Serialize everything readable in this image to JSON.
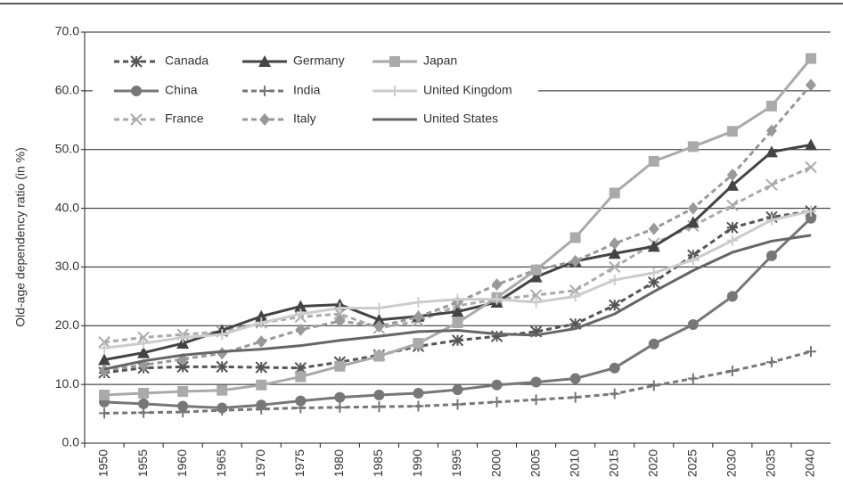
{
  "chart_data": {
    "type": "line",
    "y_label": "Old-age dependency ratio (in %)",
    "categories": [
      "1950",
      "1955",
      "1960",
      "1965",
      "1970",
      "1975",
      "1980",
      "1985",
      "1990",
      "1995",
      "2000",
      "2005",
      "2010",
      "2015",
      "2020",
      "2025",
      "2030",
      "2035",
      "2040"
    ],
    "ylim": [
      0,
      70
    ],
    "yticks": [
      {
        "value": 0,
        "label": "0.0"
      },
      {
        "value": 10,
        "label": "10.0"
      },
      {
        "value": 20,
        "label": "20.0"
      },
      {
        "value": 30,
        "label": "30.0"
      },
      {
        "value": 40,
        "label": "40.0"
      },
      {
        "value": 50,
        "label": "50.0"
      },
      {
        "value": 60,
        "label": "60.0"
      },
      {
        "value": 70,
        "label": "70.0"
      }
    ],
    "grid": true,
    "legend": "top-left",
    "series": [
      {
        "name": "Canada",
        "color": "#555555",
        "dash": true,
        "marker": "asterisk",
        "values": [
          12.0,
          12.8,
          13.0,
          13.0,
          12.9,
          12.8,
          13.8,
          15.0,
          16.5,
          17.5,
          18.2,
          19.0,
          20.3,
          23.5,
          27.4,
          32.0,
          36.7,
          38.5,
          39.5
        ]
      },
      {
        "name": "China",
        "color": "#777777",
        "dash": false,
        "marker": "circle",
        "values": [
          7.0,
          6.7,
          6.3,
          6.0,
          6.5,
          7.2,
          7.8,
          8.2,
          8.5,
          9.1,
          9.9,
          10.4,
          11.0,
          12.8,
          16.9,
          20.2,
          25.0,
          31.9,
          38.3
        ]
      },
      {
        "name": "France",
        "color": "#aaaaaa",
        "dash": true,
        "marker": "x",
        "values": [
          17.2,
          18.0,
          18.5,
          19.0,
          20.5,
          21.5,
          22.0,
          19.6,
          20.8,
          23.4,
          24.5,
          25.2,
          26.0,
          30.0,
          34.0,
          37.0,
          40.5,
          44.0,
          47.0
        ]
      },
      {
        "name": "Germany",
        "color": "#444444",
        "dash": false,
        "marker": "triangle",
        "values": [
          14.2,
          15.4,
          17.0,
          19.2,
          21.6,
          23.3,
          23.6,
          21.0,
          21.6,
          22.4,
          24.0,
          28.3,
          31.0,
          32.3,
          33.5,
          37.6,
          43.9,
          49.6,
          50.8
        ]
      },
      {
        "name": "India",
        "color": "#777777",
        "dash": true,
        "marker": "plus",
        "values": [
          5.1,
          5.2,
          5.3,
          5.6,
          5.8,
          6.0,
          6.1,
          6.2,
          6.3,
          6.6,
          7.0,
          7.4,
          7.8,
          8.4,
          9.8,
          11.0,
          12.3,
          13.8,
          15.6
        ]
      },
      {
        "name": "Italy",
        "color": "#999999",
        "dash": true,
        "marker": "diamond",
        "values": [
          12.4,
          13.3,
          14.3,
          15.3,
          17.3,
          19.3,
          20.8,
          19.9,
          21.5,
          24.0,
          27.0,
          29.5,
          31.0,
          34.0,
          36.5,
          40.0,
          45.7,
          53.2,
          61.0
        ]
      },
      {
        "name": "Japan",
        "color": "#aaaaaa",
        "dash": false,
        "marker": "square",
        "values": [
          8.2,
          8.5,
          8.8,
          9.0,
          9.9,
          11.3,
          13.1,
          14.8,
          17.0,
          20.5,
          24.8,
          29.5,
          35.0,
          42.6,
          48.0,
          50.5,
          53.1,
          57.4,
          65.5
        ]
      },
      {
        "name": "United Kingdom",
        "color": "#cccccc",
        "dash": false,
        "marker": "plus",
        "values": [
          16.2,
          17.0,
          18.0,
          18.5,
          20.5,
          22.0,
          23.0,
          23.0,
          24.0,
          24.5,
          24.5,
          24.0,
          25.0,
          27.8,
          29.0,
          31.2,
          34.5,
          38.0,
          39.5
        ]
      },
      {
        "name": "United States",
        "color": "#666666",
        "dash": false,
        "marker": "none",
        "values": [
          12.6,
          14.0,
          15.0,
          15.6,
          16.0,
          16.6,
          17.5,
          18.2,
          19.0,
          19.2,
          18.6,
          18.4,
          19.5,
          22.0,
          25.8,
          29.4,
          32.5,
          34.4,
          35.4
        ]
      }
    ]
  }
}
